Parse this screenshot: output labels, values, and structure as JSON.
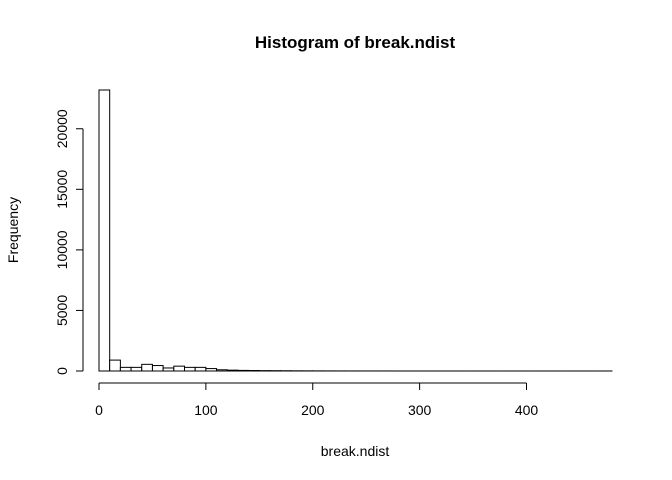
{
  "chart_data": {
    "type": "bar",
    "title": "Histogram of break.ndist",
    "xlabel": "break.ndist",
    "ylabel": "Frequency",
    "xlim": [
      0,
      480
    ],
    "ylim": [
      0,
      23200
    ],
    "x_ticks": [
      "0",
      "100",
      "200",
      "300",
      "400"
    ],
    "y_ticks": [
      "0",
      "5000",
      "10000",
      "15000",
      "20000"
    ],
    "bin_width": 10,
    "bin_start": 0,
    "values": [
      23200,
      900,
      300,
      300,
      550,
      450,
      250,
      400,
      300,
      300,
      200,
      100,
      70,
      50,
      40,
      30,
      25,
      20,
      15,
      12,
      10,
      8,
      6,
      5,
      4,
      4,
      3,
      3,
      2,
      2,
      2,
      2,
      1,
      1,
      1,
      1,
      1,
      1,
      1,
      1,
      1,
      1,
      1,
      1,
      1,
      1,
      1,
      1
    ],
    "bar_fill": "#ffffff",
    "bar_stroke": "#000000"
  }
}
